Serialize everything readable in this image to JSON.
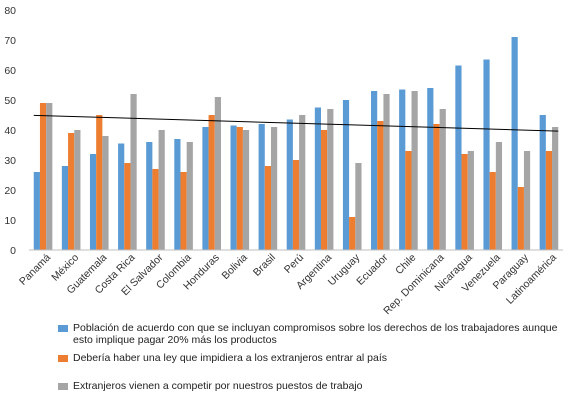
{
  "chart_data": {
    "type": "bar",
    "categories": [
      "Panamá",
      "México",
      "Guatemala",
      "Costa Rica",
      "El Salvador",
      "Colombia",
      "Honduras",
      "Bolivia",
      "Brasil",
      "Perú",
      "Argentina",
      "Uruguay",
      "Ecuador",
      "Chile",
      "Rep. Dominicana",
      "Nicaragua",
      "Venezuela",
      "Paraguay",
      "Latinoamérica"
    ],
    "series": [
      {
        "name": "Población de acuerdo con que se incluyan compromisos sobre los derechos de los trabajadores aunque esto implique pagar 20% más los productos",
        "color": "#5b9bd5",
        "values": [
          26,
          28,
          32,
          35.5,
          36,
          37,
          41,
          41.5,
          42,
          43.5,
          47.5,
          50,
          53,
          53.5,
          54,
          61.5,
          63.5,
          71,
          45
        ]
      },
      {
        "name": "Debería haber una ley que impidiera a los extranjeros entrar al país",
        "color": "#ed7d31",
        "values": [
          49,
          39,
          45,
          29,
          27,
          26,
          45,
          41,
          28,
          30,
          40,
          11,
          43,
          33,
          42,
          32,
          26,
          21,
          33
        ]
      },
      {
        "name": "Extranjeros vienen a competir por nuestros puestos de trabajo",
        "color": "#a5a5a5",
        "values": [
          49,
          40,
          38,
          52,
          40,
          36,
          51,
          40,
          41,
          45,
          47,
          29,
          52,
          53,
          47,
          33,
          36,
          33,
          41
        ]
      }
    ],
    "trendline": {
      "series_index": 2,
      "color": "#000000"
    },
    "ylim": [
      0,
      80
    ],
    "yticks": [
      0,
      10,
      20,
      30,
      40,
      50,
      60,
      70,
      80
    ],
    "grid": false,
    "legend_position": "bottom"
  }
}
